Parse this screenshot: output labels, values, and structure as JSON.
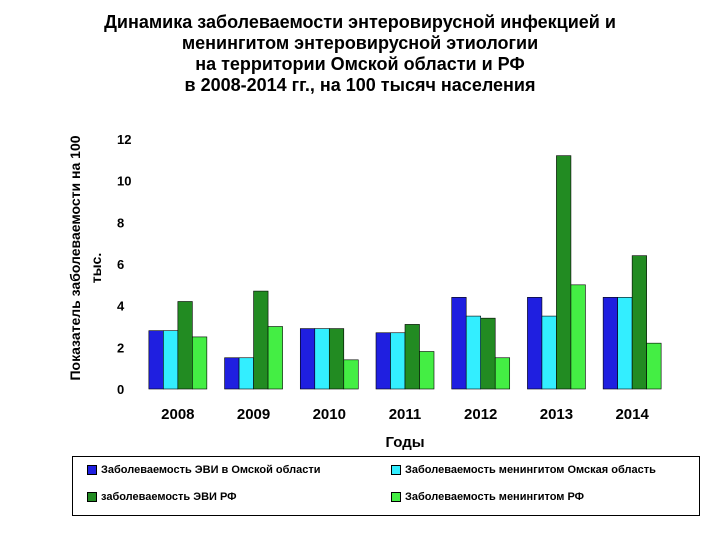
{
  "title_lines": [
    "Динамика заболеваемости энтеровирусной инфекцией и",
    "менингитом энтеровирусной этиологии",
    "на территории Омской области и РФ",
    "в 2008-2014 гг., на 100 тысяч населения"
  ],
  "chart_data": {
    "type": "bar",
    "categories": [
      "2008",
      "2009",
      "2010",
      "2011",
      "2012",
      "2013",
      "2014"
    ],
    "xlabel": "Годы",
    "ylabel_lines": [
      "Показатель заболеваемости на 100",
      "тыс."
    ],
    "ylim": [
      0,
      12
    ],
    "yticks": [
      0,
      2,
      4,
      6,
      8,
      10,
      12
    ],
    "grid": false,
    "legend_position": "bottom",
    "series": [
      {
        "name": "Заболеваемость ЭВИ в Омской области",
        "color": "#1f1fe0",
        "values": [
          2.8,
          1.5,
          2.9,
          2.7,
          4.4,
          4.4,
          4.4
        ]
      },
      {
        "name": "Заболеваемость менингитом Омская область",
        "color": "#33eeff",
        "values": [
          2.8,
          1.5,
          2.9,
          2.7,
          3.5,
          3.5,
          4.4
        ]
      },
      {
        "name": "заболеваемость ЭВИ РФ",
        "color": "#228b22",
        "values": [
          4.2,
          4.7,
          2.9,
          3.1,
          3.4,
          11.2,
          6.4
        ]
      },
      {
        "name": "Заболеваемость менингитом РФ",
        "color": "#44ee44",
        "values": [
          2.5,
          3.0,
          1.4,
          1.8,
          1.5,
          5.0,
          2.2
        ]
      }
    ]
  }
}
